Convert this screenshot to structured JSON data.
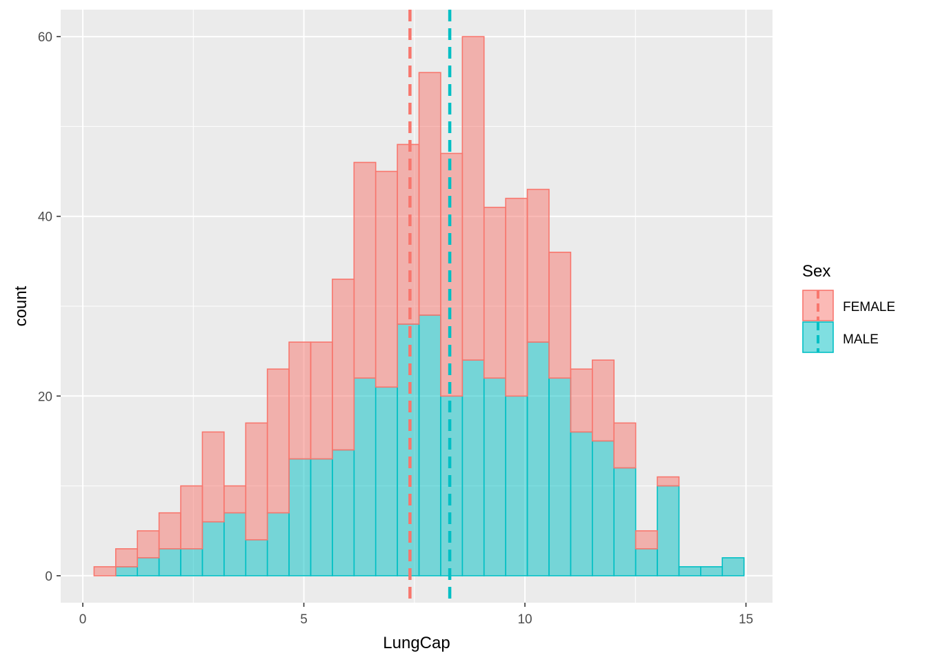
{
  "chart_data": {
    "type": "bar",
    "subtype": "stacked-histogram",
    "xlabel": "LungCap",
    "ylabel": "count",
    "xlim": [
      -0.5,
      15.6
    ],
    "ylim": [
      -3.0,
      63.0
    ],
    "x_ticks": [
      0,
      5,
      10,
      15
    ],
    "x_tick_labels": [
      "0",
      "5",
      "10",
      "15"
    ],
    "y_ticks": [
      0,
      20,
      40,
      60
    ],
    "y_tick_labels": [
      "0",
      "20",
      "40",
      "60"
    ],
    "grid": true,
    "bin_width": 0.49,
    "bin_centers": [
      0.5,
      0.99,
      1.48,
      1.97,
      2.46,
      2.95,
      3.44,
      3.93,
      4.42,
      4.91,
      5.4,
      5.89,
      6.38,
      6.87,
      7.36,
      7.85,
      8.34,
      8.83,
      9.32,
      9.81,
      10.3,
      10.79,
      11.28,
      11.77,
      12.26,
      12.75,
      13.24,
      13.73,
      14.22,
      14.71
    ],
    "series": [
      {
        "name": "MALE",
        "color": "#00BFC4",
        "values": [
          0,
          1,
          2,
          3,
          3,
          6,
          7,
          4,
          7,
          13,
          13,
          14,
          22,
          21,
          28,
          29,
          20,
          24,
          22,
          20,
          26,
          22,
          16,
          15,
          12,
          3,
          10,
          1,
          1,
          2
        ]
      },
      {
        "name": "FEMALE",
        "color": "#F8766D",
        "values": [
          1,
          2,
          3,
          4,
          7,
          10,
          3,
          13,
          16,
          13,
          13,
          19,
          24,
          24,
          20,
          27,
          27,
          36,
          19,
          22,
          17,
          14,
          7,
          9,
          5,
          2,
          1,
          0,
          0,
          0
        ]
      }
    ],
    "stack_totals": [
      1,
      3,
      5,
      7,
      10,
      16,
      10,
      17,
      23,
      26,
      26,
      33,
      46,
      45,
      48,
      56,
      47,
      60,
      41,
      42,
      43,
      36,
      23,
      24,
      17,
      5,
      11,
      1,
      1,
      2
    ],
    "reference_lines": [
      {
        "series": "FEMALE",
        "x": 7.4,
        "style": "dashed",
        "color": "#F8766D"
      },
      {
        "series": "MALE",
        "x": 8.3,
        "style": "dashed",
        "color": "#00BFC4"
      }
    ],
    "legend": {
      "title": "Sex",
      "placement": "right",
      "entries": [
        "FEMALE",
        "MALE"
      ]
    }
  },
  "colors": {
    "panel_background": "#EBEBEB",
    "grid_major": "#FFFFFF",
    "female": "#F8766D",
    "male": "#00BFC4"
  }
}
